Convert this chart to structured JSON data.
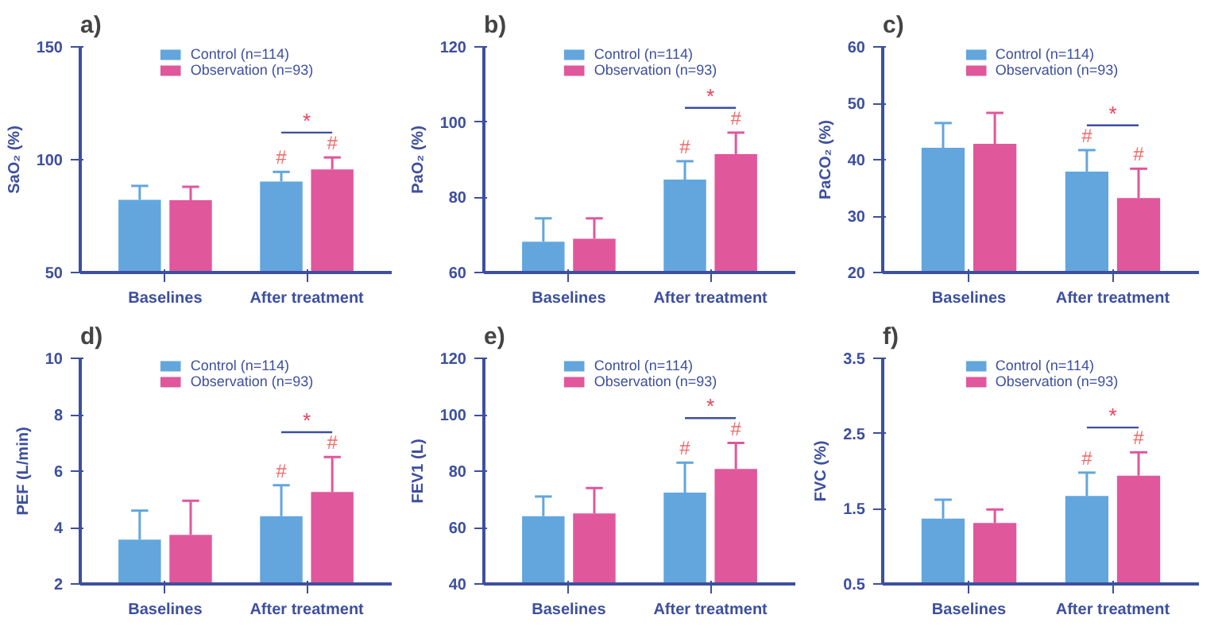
{
  "chart_data": [
    {
      "type": "bar",
      "title": "a)",
      "ylabel": "SaO₂ (%)",
      "categories": [
        "Baselines",
        "After treatment"
      ],
      "ylim": [
        50,
        150
      ],
      "yticks": [
        50,
        100,
        150
      ],
      "grid": false,
      "legend": "top",
      "series": [
        {
          "name": "Control (n=114)",
          "color": "#62a6dd",
          "values": [
            82.2,
            90.3
          ],
          "errors": [
            [
              82.2,
              88.4
            ],
            [
              90.3,
              94.6
            ]
          ]
        },
        {
          "name": "Observation (n=93)",
          "color": "#e0579c",
          "values": [
            82,
            95.7
          ],
          "errors": [
            [
              82,
              88
            ],
            [
              95.7,
              101
            ]
          ]
        }
      ],
      "annotations": [
        "#",
        "#",
        "*"
      ]
    },
    {
      "type": "bar",
      "title": "b)",
      "ylabel": "PaO₂ (%)",
      "categories": [
        "Baselines",
        "After treatment"
      ],
      "ylim": [
        60,
        120
      ],
      "yticks": [
        60,
        80,
        100,
        120
      ],
      "grid": false,
      "legend": "top",
      "series": [
        {
          "name": "Control (n=114)",
          "color": "#62a6dd",
          "values": [
            68.2,
            84.7
          ],
          "errors": [
            [
              68.2,
              74.4
            ],
            [
              84.7,
              89.6
            ]
          ]
        },
        {
          "name": "Observation (n=93)",
          "color": "#e0579c",
          "values": [
            69,
            91.5
          ],
          "errors": [
            [
              69,
              74.4
            ],
            [
              91.5,
              97.2
            ]
          ]
        }
      ],
      "annotations": [
        "#",
        "#",
        "*"
      ]
    },
    {
      "type": "bar",
      "title": "c)",
      "ylabel": "PaCO₂ (%)",
      "categories": [
        "Baselines",
        "After treatment"
      ],
      "ylim": [
        20,
        60
      ],
      "yticks": [
        20,
        30,
        40,
        50,
        60
      ],
      "grid": false,
      "legend": "top",
      "series": [
        {
          "name": "Control (n=114)",
          "color": "#62a6dd",
          "values": [
            42.1,
            37.9
          ],
          "errors": [
            [
              42.1,
              46.5
            ],
            [
              37.9,
              41.7
            ]
          ]
        },
        {
          "name": "Observation (n=93)",
          "color": "#e0579c",
          "values": [
            42.8,
            33.2
          ],
          "errors": [
            [
              42.8,
              48.3
            ],
            [
              33.2,
              38.4
            ]
          ]
        }
      ],
      "annotations": [
        "#",
        "#",
        "*"
      ]
    },
    {
      "type": "bar",
      "title": "d)",
      "ylabel": "PEF (L/min)",
      "categories": [
        "Baselines",
        "After treatment"
      ],
      "ylim": [
        2,
        10
      ],
      "yticks": [
        2,
        4,
        6,
        8,
        10
      ],
      "grid": false,
      "legend": "top",
      "series": [
        {
          "name": "Control (n=114)",
          "color": "#62a6dd",
          "values": [
            3.57,
            4.4
          ],
          "errors": [
            [
              3.57,
              4.6
            ],
            [
              4.4,
              5.5
            ]
          ]
        },
        {
          "name": "Observation (n=93)",
          "color": "#e0579c",
          "values": [
            3.74,
            5.26
          ],
          "errors": [
            [
              3.74,
              4.95
            ],
            [
              5.26,
              6.5
            ]
          ]
        }
      ],
      "annotations": [
        "#",
        "#",
        "*"
      ]
    },
    {
      "type": "bar",
      "title": "e)",
      "ylabel": "FEV1 (L)",
      "categories": [
        "Baselines",
        "After treatment"
      ],
      "ylim": [
        40,
        120
      ],
      "yticks": [
        40,
        60,
        80,
        100,
        120
      ],
      "grid": false,
      "legend": "top",
      "series": [
        {
          "name": "Control (n=114)",
          "color": "#62a6dd",
          "values": [
            64,
            72.4
          ],
          "errors": [
            [
              64,
              71
            ],
            [
              72.4,
              83
            ]
          ]
        },
        {
          "name": "Observation (n=93)",
          "color": "#e0579c",
          "values": [
            65,
            80.8
          ],
          "errors": [
            [
              65,
              74
            ],
            [
              80.8,
              90
            ]
          ]
        }
      ],
      "annotations": [
        "#",
        "#",
        "*"
      ]
    },
    {
      "type": "bar",
      "title": "f)",
      "ylabel": "FVC (%)",
      "categories": [
        "Baselines",
        "After treatment"
      ],
      "ylim": [
        0.5,
        3.5
      ],
      "yticks": [
        0.5,
        1.5,
        2.5,
        3.5
      ],
      "grid": false,
      "legend": "top",
      "series": [
        {
          "name": "Control (n=114)",
          "color": "#62a6dd",
          "values": [
            1.37,
            1.67
          ],
          "errors": [
            [
              1.37,
              1.62
            ],
            [
              1.67,
              1.98
            ]
          ]
        },
        {
          "name": "Observation (n=93)",
          "color": "#e0579c",
          "values": [
            1.31,
            1.94
          ],
          "errors": [
            [
              1.31,
              1.49
            ],
            [
              1.94,
              2.25
            ]
          ]
        }
      ],
      "annotations": [
        "#",
        "#",
        "*"
      ]
    }
  ]
}
